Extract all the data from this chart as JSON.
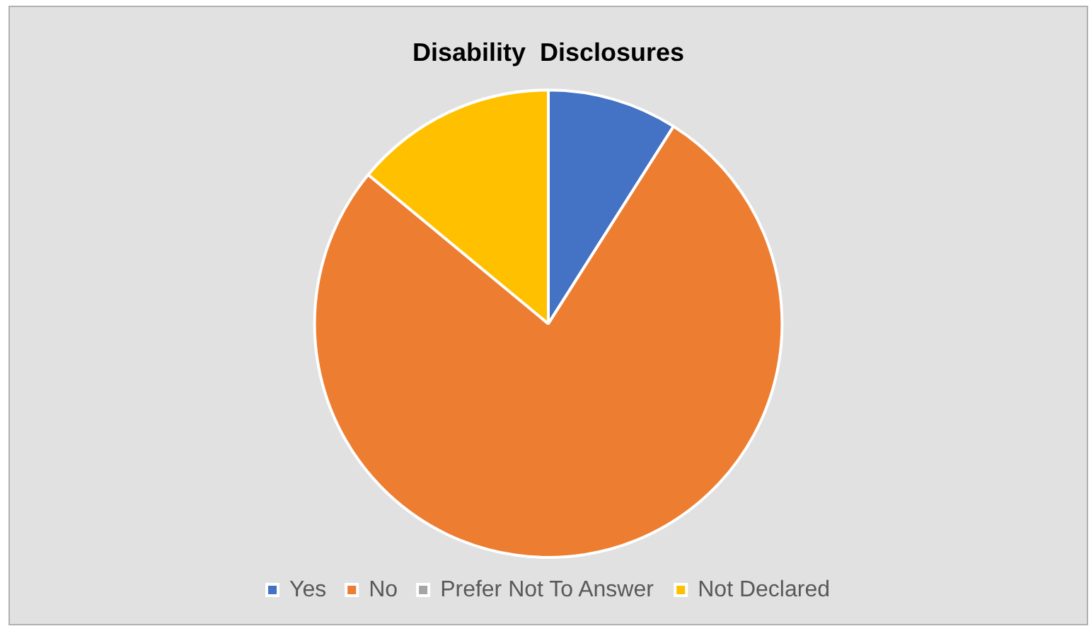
{
  "chart_data": {
    "type": "pie",
    "title": "Disability  Disclosures",
    "categories": [
      "Yes",
      "No",
      "Prefer Not To Answer",
      "Not Declared"
    ],
    "values": [
      9,
      77,
      0,
      14
    ],
    "colors": [
      "#4472c4",
      "#ed7d31",
      "#a5a5a5",
      "#ffc000"
    ],
    "legend": "bottom"
  }
}
